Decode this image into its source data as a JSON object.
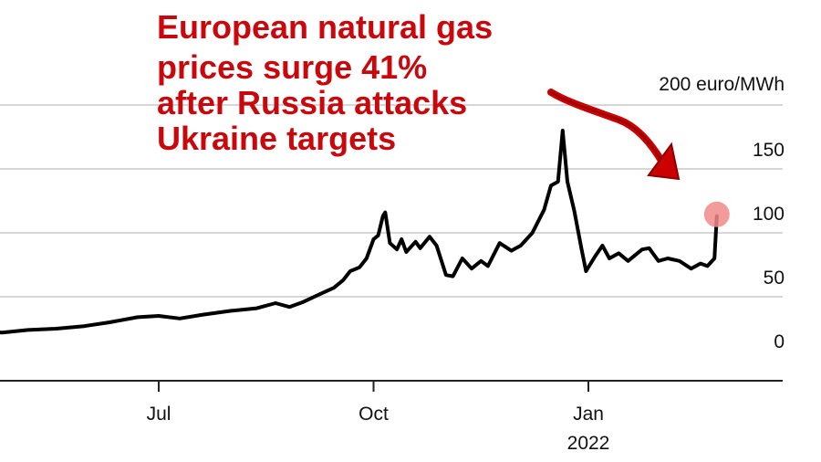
{
  "headline": {
    "lines": [
      "European natural gas",
      "prices surge 41%",
      "after Russia attacks",
      "Ukraine targets"
    ]
  },
  "colors": {
    "headline": "#c8080c",
    "line": "#000000",
    "highlight_dot": "#f08a8a",
    "grid": "#d6d6d6",
    "arrow": "#cc0000"
  },
  "icons": {
    "annotation_arrow": "red-hand-drawn-arrow-icon",
    "highlight": "pink-dot"
  },
  "chart_data": {
    "type": "line",
    "title": "",
    "xlabel": "",
    "ylabel": "",
    "unit_label": "200 euro/MWh",
    "ylim": [
      0,
      200
    ],
    "y_ticks": [
      {
        "value": 0,
        "label": "0"
      },
      {
        "value": 50,
        "label": "50"
      },
      {
        "value": 100,
        "label": "100"
      },
      {
        "value": 150,
        "label": "150"
      },
      {
        "value": 200,
        "label": "200 euro/MWh"
      }
    ],
    "x_ticks": [
      {
        "date": "2021-07-01",
        "label": "Jul",
        "sublabel": ""
      },
      {
        "date": "2021-10-01",
        "label": "Oct",
        "sublabel": ""
      },
      {
        "date": "2022-01-01",
        "label": "Jan",
        "sublabel": "2022"
      }
    ],
    "grid": true,
    "series": [
      {
        "points": [
          [
            "2021-03-01",
            18
          ],
          [
            "2021-03-10",
            20
          ],
          [
            "2021-03-20",
            22
          ],
          [
            "2021-04-01",
            21
          ],
          [
            "2021-04-12",
            23
          ],
          [
            "2021-04-25",
            22
          ],
          [
            "2021-05-06",
            24
          ],
          [
            "2021-05-18",
            25
          ],
          [
            "2021-05-30",
            27
          ],
          [
            "2021-06-10",
            30
          ],
          [
            "2021-06-22",
            34
          ],
          [
            "2021-07-01",
            35
          ],
          [
            "2021-07-10",
            33
          ],
          [
            "2021-07-20",
            36
          ],
          [
            "2021-08-01",
            39
          ],
          [
            "2021-08-12",
            41
          ],
          [
            "2021-08-20",
            45
          ],
          [
            "2021-08-26",
            42
          ],
          [
            "2021-09-01",
            46
          ],
          [
            "2021-09-08",
            52
          ],
          [
            "2021-09-14",
            57
          ],
          [
            "2021-09-18",
            63
          ],
          [
            "2021-09-21",
            70
          ],
          [
            "2021-09-25",
            73
          ],
          [
            "2021-09-28",
            80
          ],
          [
            "2021-10-01",
            95
          ],
          [
            "2021-10-03",
            98
          ],
          [
            "2021-10-05",
            113
          ],
          [
            "2021-10-06",
            116
          ],
          [
            "2021-10-08",
            92
          ],
          [
            "2021-10-11",
            87
          ],
          [
            "2021-10-13",
            95
          ],
          [
            "2021-10-15",
            85
          ],
          [
            "2021-10-19",
            93
          ],
          [
            "2021-10-21",
            88
          ],
          [
            "2021-10-25",
            97
          ],
          [
            "2021-10-28",
            90
          ],
          [
            "2021-11-01",
            67
          ],
          [
            "2021-11-04",
            66
          ],
          [
            "2021-11-08",
            80
          ],
          [
            "2021-11-12",
            72
          ],
          [
            "2021-11-16",
            78
          ],
          [
            "2021-11-19",
            74
          ],
          [
            "2021-11-24",
            92
          ],
          [
            "2021-11-29",
            86
          ],
          [
            "2021-12-03",
            90
          ],
          [
            "2021-12-08",
            100
          ],
          [
            "2021-12-13",
            118
          ],
          [
            "2021-12-16",
            137
          ],
          [
            "2021-12-19",
            140
          ],
          [
            "2021-12-21",
            180
          ],
          [
            "2021-12-23",
            140
          ],
          [
            "2021-12-26",
            117
          ],
          [
            "2021-12-29",
            88
          ],
          [
            "2021-12-31",
            70
          ],
          [
            "2022-01-04",
            82
          ],
          [
            "2022-01-07",
            90
          ],
          [
            "2022-01-10",
            80
          ],
          [
            "2022-01-14",
            84
          ],
          [
            "2022-01-18",
            78
          ],
          [
            "2022-01-24",
            87
          ],
          [
            "2022-01-27",
            88
          ],
          [
            "2022-01-31",
            78
          ],
          [
            "2022-02-04",
            80
          ],
          [
            "2022-02-09",
            78
          ],
          [
            "2022-02-14",
            72
          ],
          [
            "2022-02-18",
            76
          ],
          [
            "2022-02-21",
            74
          ],
          [
            "2022-02-24",
            80
          ],
          [
            "2022-02-25",
            113
          ]
        ]
      }
    ],
    "highlight_point": [
      "2022-02-25",
      113
    ]
  }
}
